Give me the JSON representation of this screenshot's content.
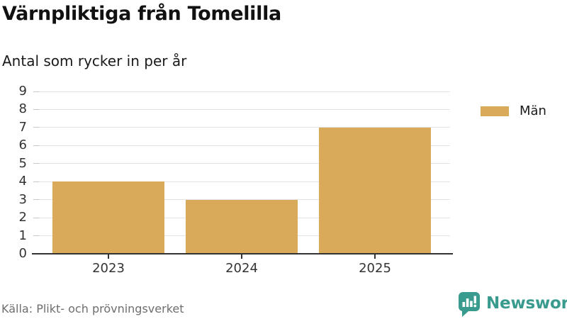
{
  "title": "Värnpliktiga från Tomelilla",
  "subtitle": "Antal som rycker in per år",
  "legend": {
    "label": "Män",
    "color": "#d9aa5a"
  },
  "source": "Källa: Plikt- och prövningsverket",
  "branding": {
    "name": "Newsworthy",
    "color": "#399b8d",
    "icon": "bar-chart-speech-bubble-icon"
  },
  "chart_data": {
    "type": "bar",
    "categories": [
      "2023",
      "2024",
      "2025"
    ],
    "series": [
      {
        "name": "Män",
        "values": [
          4,
          3,
          7
        ]
      }
    ],
    "title": "Värnpliktiga från Tomelilla",
    "subtitle": "Antal som rycker in per år",
    "xlabel": "",
    "ylabel": "",
    "ylim": [
      0,
      9
    ],
    "yticks": [
      0,
      1,
      2,
      3,
      4,
      5,
      6,
      7,
      8,
      9
    ],
    "grid": true,
    "legend_position": "right",
    "bar_color": "#d9aa5a",
    "gridline_color": "#e2e2e2",
    "axis_color": "#333333"
  }
}
